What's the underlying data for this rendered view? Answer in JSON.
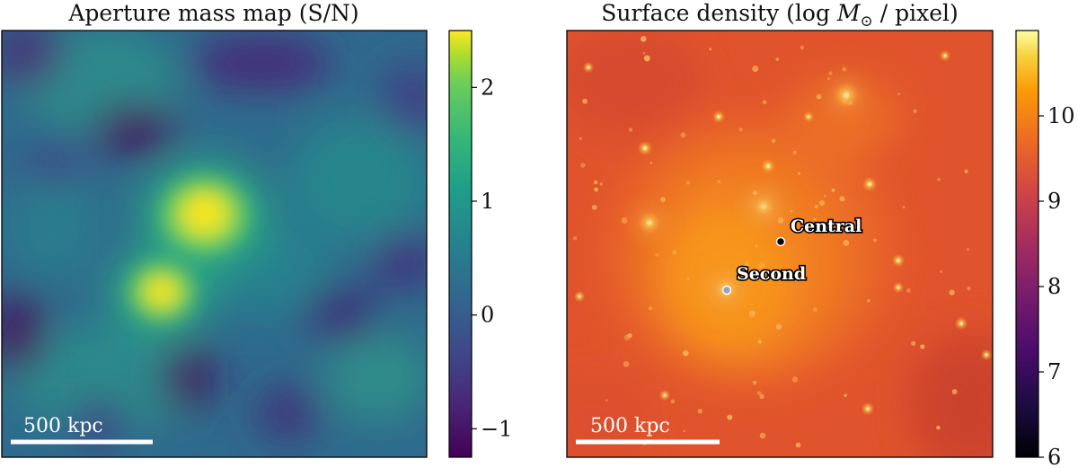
{
  "chart_data": [
    {
      "type": "heatmap",
      "title": "Aperture mass map (S/N)",
      "colormap": "viridis",
      "colorbar": {
        "ticks": [
          2,
          1,
          0,
          -1
        ],
        "tick_labels": [
          "2",
          "1",
          "0",
          "−1"
        ],
        "range": [
          -1.25,
          2.5
        ]
      },
      "scale_bar": {
        "label": "500 kpc"
      },
      "peaks": [
        {
          "name": "north peak",
          "value": 2.5
        },
        {
          "name": "south peak",
          "value": 2.4
        }
      ]
    },
    {
      "type": "heatmap",
      "title_prefix": "Surface density (log ",
      "title_symbol": "M",
      "title_subscript": "⊙",
      "title_suffix": " / pixel)",
      "colormap": "inferno",
      "colorbar": {
        "ticks": [
          10,
          9,
          8,
          7,
          6
        ],
        "tick_labels": [
          "10",
          "9",
          "8",
          "7",
          "6"
        ],
        "range": [
          6,
          11
        ]
      },
      "scale_bar": {
        "label": "500 kpc"
      },
      "markers": [
        {
          "label": "Central",
          "color": "#000000"
        },
        {
          "label": "Second",
          "color": "#9aa4b8"
        }
      ]
    }
  ]
}
